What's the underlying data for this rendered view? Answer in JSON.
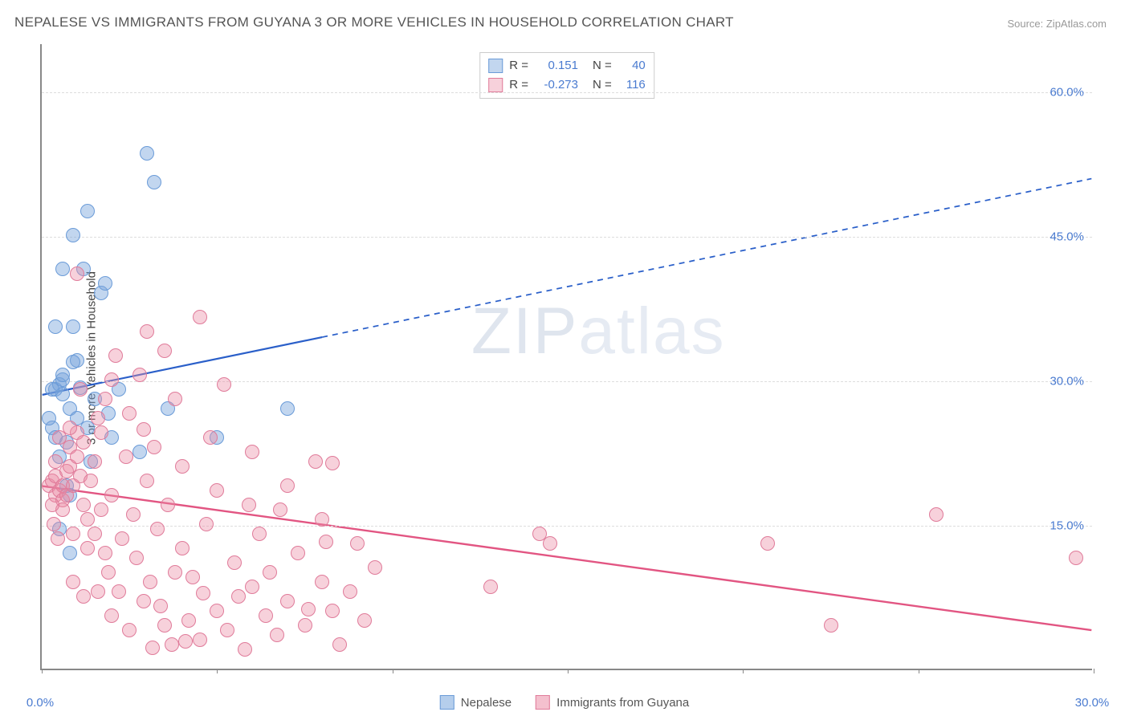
{
  "title": "NEPALESE VS IMMIGRANTS FROM GUYANA 3 OR MORE VEHICLES IN HOUSEHOLD CORRELATION CHART",
  "source": "Source: ZipAtlas.com",
  "ylabel": "3 or more Vehicles in Household",
  "watermark_a": "ZIP",
  "watermark_b": "atlas",
  "chart": {
    "type": "scatter",
    "xlim": [
      0,
      30
    ],
    "ylim": [
      0,
      65
    ],
    "xticks": [
      0,
      5,
      10,
      15,
      20,
      25,
      30
    ],
    "xtick_labels": [
      "0.0%",
      "",
      "",
      "",
      "",
      "",
      "30.0%"
    ],
    "yticks": [
      15,
      30,
      45,
      60
    ],
    "ytick_labels": [
      "15.0%",
      "30.0%",
      "45.0%",
      "60.0%"
    ],
    "grid_color": "#e3e3e3",
    "axis_color": "#888888",
    "series": [
      {
        "name": "Nepalese",
        "color_fill": "rgba(120,165,220,0.45)",
        "color_stroke": "#6a9bd8",
        "marker_radius": 9,
        "R": "0.151",
        "N": "40",
        "trend": {
          "x1": 0,
          "y1": 28.5,
          "x2": 30,
          "y2": 51,
          "solid_until_x": 8,
          "color": "#2a5fc9",
          "width": 2.2
        },
        "points": [
          [
            0.4,
            29
          ],
          [
            0.5,
            29.5
          ],
          [
            0.6,
            28.5
          ],
          [
            0.6,
            30
          ],
          [
            0.8,
            27
          ],
          [
            1.0,
            32
          ],
          [
            0.9,
            35.5
          ],
          [
            0.4,
            35.5
          ],
          [
            1.3,
            47.5
          ],
          [
            1.7,
            39
          ],
          [
            1.8,
            40
          ],
          [
            1.2,
            41.5
          ],
          [
            0.6,
            41.5
          ],
          [
            0.9,
            45
          ],
          [
            3.0,
            53.5
          ],
          [
            3.2,
            50.5
          ],
          [
            1.0,
            26
          ],
          [
            1.3,
            25
          ],
          [
            1.9,
            26.5
          ],
          [
            2.0,
            24
          ],
          [
            2.8,
            22.5
          ],
          [
            3.6,
            27
          ],
          [
            5.0,
            24
          ],
          [
            7.0,
            27
          ],
          [
            0.5,
            22
          ],
          [
            0.7,
            19
          ],
          [
            0.8,
            18
          ],
          [
            1.4,
            21.5
          ],
          [
            0.5,
            14.5
          ],
          [
            0.8,
            12
          ],
          [
            0.3,
            25
          ],
          [
            0.4,
            24
          ],
          [
            0.6,
            30.5
          ],
          [
            0.9,
            31.8
          ],
          [
            1.1,
            29.2
          ],
          [
            0.3,
            29
          ],
          [
            0.2,
            26
          ],
          [
            1.5,
            28
          ],
          [
            0.7,
            23.5
          ],
          [
            2.2,
            29
          ]
        ]
      },
      {
        "name": "Immigrants from Guyana",
        "color_fill": "rgba(235,140,165,0.40)",
        "color_stroke": "#e07b9a",
        "marker_radius": 9,
        "R": "-0.273",
        "N": "116",
        "trend": {
          "x1": 0,
          "y1": 19,
          "x2": 30,
          "y2": 4,
          "solid_until_x": 30,
          "color": "#e25582",
          "width": 2.4
        },
        "points": [
          [
            0.2,
            19
          ],
          [
            0.3,
            19.5
          ],
          [
            0.4,
            18
          ],
          [
            0.4,
            20
          ],
          [
            0.5,
            18.5
          ],
          [
            0.6,
            19
          ],
          [
            0.6,
            17.5
          ],
          [
            0.7,
            20.5
          ],
          [
            0.7,
            18
          ],
          [
            0.8,
            21
          ],
          [
            0.8,
            23
          ],
          [
            0.9,
            19
          ],
          [
            1.0,
            22
          ],
          [
            1.0,
            24.5
          ],
          [
            1.1,
            20
          ],
          [
            1.2,
            23.5
          ],
          [
            1.2,
            17
          ],
          [
            1.3,
            15.5
          ],
          [
            1.4,
            19.5
          ],
          [
            1.5,
            14
          ],
          [
            1.5,
            21.5
          ],
          [
            1.6,
            26
          ],
          [
            1.7,
            16.5
          ],
          [
            1.8,
            28
          ],
          [
            1.8,
            12
          ],
          [
            1.9,
            10
          ],
          [
            2.0,
            18
          ],
          [
            2.0,
            30
          ],
          [
            2.2,
            8
          ],
          [
            2.3,
            13.5
          ],
          [
            2.4,
            22
          ],
          [
            2.5,
            26.5
          ],
          [
            2.5,
            4
          ],
          [
            2.6,
            16
          ],
          [
            2.7,
            11.5
          ],
          [
            2.8,
            30.5
          ],
          [
            2.9,
            7
          ],
          [
            3.0,
            19.5
          ],
          [
            3.0,
            35
          ],
          [
            3.1,
            9
          ],
          [
            3.2,
            23
          ],
          [
            3.3,
            14.5
          ],
          [
            3.4,
            6.5
          ],
          [
            3.5,
            33
          ],
          [
            3.5,
            4.5
          ],
          [
            3.6,
            17
          ],
          [
            3.7,
            2.5
          ],
          [
            3.8,
            28
          ],
          [
            4.0,
            12.5
          ],
          [
            4.0,
            21
          ],
          [
            4.2,
            5
          ],
          [
            4.3,
            9.5
          ],
          [
            4.5,
            36.5
          ],
          [
            4.5,
            3
          ],
          [
            4.7,
            15
          ],
          [
            4.8,
            24
          ],
          [
            5.0,
            6
          ],
          [
            5.0,
            18.5
          ],
          [
            5.2,
            29.5
          ],
          [
            5.3,
            4
          ],
          [
            5.5,
            11
          ],
          [
            5.6,
            7.5
          ],
          [
            5.8,
            2
          ],
          [
            6.0,
            22.5
          ],
          [
            6.0,
            8.5
          ],
          [
            6.2,
            14
          ],
          [
            6.4,
            5.5
          ],
          [
            6.5,
            10
          ],
          [
            6.7,
            3.5
          ],
          [
            7.0,
            19
          ],
          [
            7.0,
            7
          ],
          [
            7.3,
            12
          ],
          [
            7.5,
            4.5
          ],
          [
            7.8,
            21.5
          ],
          [
            8.0,
            9
          ],
          [
            8.0,
            15.5
          ],
          [
            8.3,
            6
          ],
          [
            8.5,
            2.5
          ],
          [
            8.8,
            8
          ],
          [
            9.0,
            13
          ],
          [
            9.2,
            5
          ],
          [
            9.5,
            10.5
          ],
          [
            12.8,
            8.5
          ],
          [
            14.2,
            14
          ],
          [
            14.5,
            13
          ],
          [
            20.7,
            13
          ],
          [
            25.5,
            16
          ],
          [
            22.5,
            4.5
          ],
          [
            29.5,
            11.5
          ],
          [
            1.0,
            41
          ],
          [
            0.6,
            16.5
          ],
          [
            0.9,
            14
          ],
          [
            1.3,
            12.5
          ],
          [
            0.4,
            21.5
          ],
          [
            0.3,
            17
          ],
          [
            0.8,
            25
          ],
          [
            1.7,
            24.5
          ],
          [
            2.1,
            32.5
          ],
          [
            1.1,
            29
          ],
          [
            0.5,
            24
          ],
          [
            2.9,
            24.8
          ],
          [
            3.8,
            10
          ],
          [
            4.6,
            7.8
          ],
          [
            5.9,
            17
          ],
          [
            6.8,
            16.5
          ],
          [
            7.6,
            6.2
          ],
          [
            4.1,
            2.8
          ],
          [
            3.15,
            2.2
          ],
          [
            2.0,
            5.5
          ],
          [
            1.6,
            8
          ],
          [
            1.2,
            7.5
          ],
          [
            0.9,
            9
          ],
          [
            0.45,
            13.5
          ],
          [
            0.35,
            15
          ],
          [
            8.3,
            21.3
          ],
          [
            8.1,
            13.2
          ]
        ]
      }
    ]
  },
  "bottom_legend": [
    {
      "label": "Nepalese",
      "fill": "rgba(120,165,220,0.55)",
      "stroke": "#6a9bd8"
    },
    {
      "label": "Immigrants from Guyana",
      "fill": "rgba(235,140,165,0.55)",
      "stroke": "#e07b9a"
    }
  ]
}
